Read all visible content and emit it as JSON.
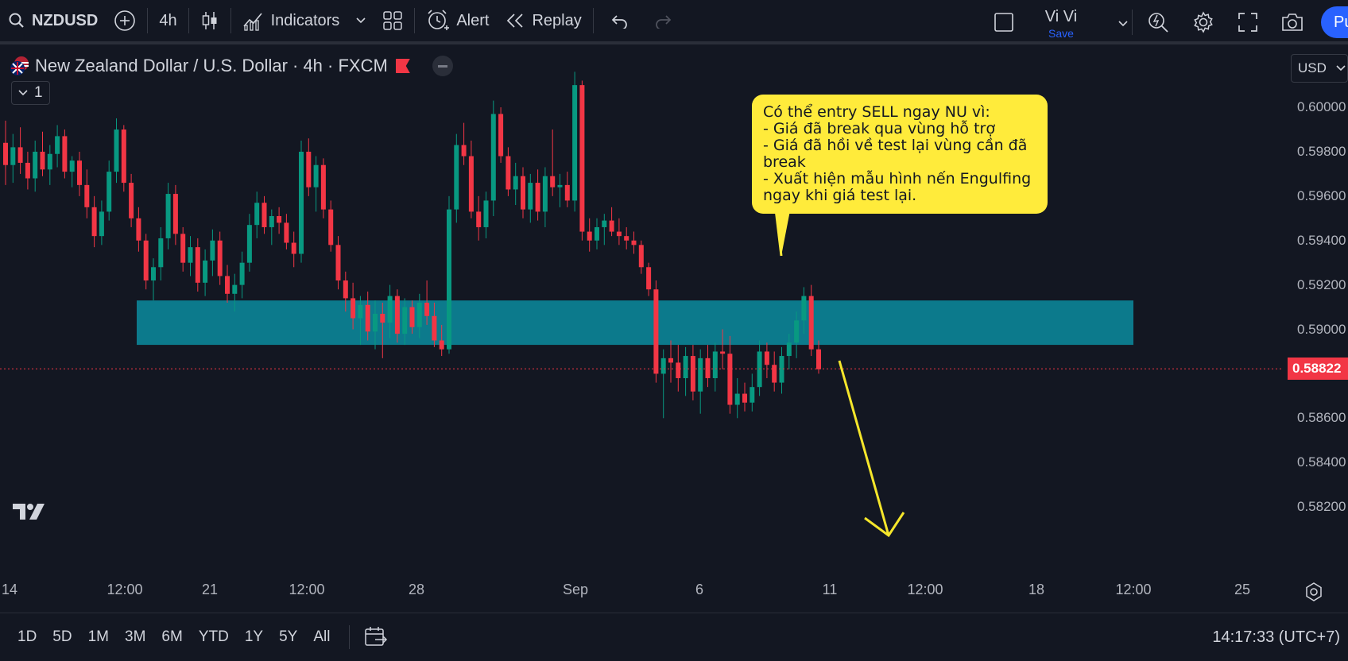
{
  "toolbar": {
    "symbol": "NZDUSD",
    "interval": "4h",
    "indicators_label": "Indicators",
    "alert_label": "Alert",
    "replay_label": "Replay",
    "user_name": "Vi Vi",
    "save_label": "Save",
    "publish_label": "Pu"
  },
  "legend": {
    "title": "New Zealand Dollar / U.S. Dollar · 4h · FXCM",
    "indicators_count": "1"
  },
  "annotation": {
    "text": "Có thể entry SELL ngay NU vì:\n- Giá đã break qua vùng hỗ trợ\n- Giá đã hồi về test lại vùng cần đã break\n- Xuất hiện mẫu hình nến Engulfing ngay khi giá test lại."
  },
  "price_axis": {
    "currency": "USD",
    "ticks": [
      "0.60000",
      "0.59800",
      "0.59600",
      "0.59400",
      "0.59200",
      "0.59000",
      "0.58600",
      "0.58400",
      "0.58200"
    ],
    "last_price": "0.58822"
  },
  "time_axis": {
    "ticks": [
      "14",
      "12:00",
      "21",
      "12:00",
      "28",
      "Sep",
      "6",
      "11",
      "12:00",
      "18",
      "12:00",
      "25"
    ]
  },
  "bottom": {
    "ranges": [
      "1D",
      "5D",
      "1M",
      "3M",
      "6M",
      "YTD",
      "1Y",
      "5Y",
      "All"
    ],
    "clock": "14:17:33 (UTC+7)"
  },
  "colors": {
    "background": "#131722",
    "up": "#089981",
    "down": "#f23645",
    "zone": "#0c7a8c",
    "callout": "#ffeb3b",
    "arrow": "#f5e62b",
    "accent": "#2962ff"
  },
  "chart_data": {
    "type": "candlestick",
    "ylim": [
      0.5805,
      0.6024
    ],
    "zone": {
      "low": 0.5893,
      "high": 0.5913
    },
    "last_price": 0.58822,
    "candles": [
      [
        0.5984,
        0.5994,
        0.5965,
        0.5974
      ],
      [
        0.5974,
        0.5988,
        0.5966,
        0.5982
      ],
      [
        0.5982,
        0.5991,
        0.597,
        0.5975
      ],
      [
        0.5975,
        0.598,
        0.5963,
        0.5968
      ],
      [
        0.5968,
        0.5985,
        0.5962,
        0.598
      ],
      [
        0.598,
        0.5989,
        0.5969,
        0.5972
      ],
      [
        0.5972,
        0.5983,
        0.5965,
        0.5979
      ],
      [
        0.5979,
        0.5992,
        0.5973,
        0.5987
      ],
      [
        0.5987,
        0.599,
        0.5968,
        0.5971
      ],
      [
        0.5971,
        0.5978,
        0.5964,
        0.5976
      ],
      [
        0.5976,
        0.598,
        0.596,
        0.5965
      ],
      [
        0.5965,
        0.5972,
        0.595,
        0.5955
      ],
      [
        0.5955,
        0.596,
        0.5937,
        0.5942
      ],
      [
        0.5942,
        0.5958,
        0.5938,
        0.5953
      ],
      [
        0.5953,
        0.5976,
        0.5949,
        0.5971
      ],
      [
        0.5971,
        0.5995,
        0.5966,
        0.599
      ],
      [
        0.599,
        0.5992,
        0.5962,
        0.5966
      ],
      [
        0.5966,
        0.597,
        0.5946,
        0.595
      ],
      [
        0.595,
        0.5955,
        0.5935,
        0.594
      ],
      [
        0.594,
        0.5943,
        0.5918,
        0.5922
      ],
      [
        0.5922,
        0.5932,
        0.5913,
        0.5928
      ],
      [
        0.5928,
        0.5946,
        0.5922,
        0.5941
      ],
      [
        0.5941,
        0.5966,
        0.5936,
        0.5961
      ],
      [
        0.5961,
        0.5965,
        0.5938,
        0.5943
      ],
      [
        0.5943,
        0.5946,
        0.5926,
        0.593
      ],
      [
        0.593,
        0.5942,
        0.5924,
        0.5937
      ],
      [
        0.5937,
        0.5941,
        0.5917,
        0.5921
      ],
      [
        0.5921,
        0.5936,
        0.5915,
        0.5931
      ],
      [
        0.5931,
        0.5945,
        0.5924,
        0.594
      ],
      [
        0.594,
        0.5944,
        0.592,
        0.5924
      ],
      [
        0.5924,
        0.5929,
        0.5912,
        0.5916
      ],
      [
        0.5916,
        0.5925,
        0.5908,
        0.592
      ],
      [
        0.592,
        0.5935,
        0.5914,
        0.593
      ],
      [
        0.593,
        0.5952,
        0.5926,
        0.5947
      ],
      [
        0.5947,
        0.5962,
        0.5941,
        0.5957
      ],
      [
        0.5957,
        0.596,
        0.5943,
        0.5946
      ],
      [
        0.5946,
        0.5954,
        0.5938,
        0.5951
      ],
      [
        0.5951,
        0.5955,
        0.5943,
        0.5948
      ],
      [
        0.5948,
        0.5952,
        0.5936,
        0.5939
      ],
      [
        0.5939,
        0.5944,
        0.5928,
        0.5934
      ],
      [
        0.5934,
        0.5985,
        0.593,
        0.598
      ],
      [
        0.598,
        0.5986,
        0.596,
        0.5964
      ],
      [
        0.5964,
        0.5978,
        0.5953,
        0.5974
      ],
      [
        0.5974,
        0.5977,
        0.595,
        0.5954
      ],
      [
        0.5954,
        0.5958,
        0.5935,
        0.5938
      ],
      [
        0.5938,
        0.5942,
        0.5918,
        0.5922
      ],
      [
        0.5922,
        0.5926,
        0.5908,
        0.5914
      ],
      [
        0.5914,
        0.5921,
        0.59,
        0.5905
      ],
      [
        0.5905,
        0.5915,
        0.5893,
        0.5911
      ],
      [
        0.5911,
        0.5917,
        0.5895,
        0.5899
      ],
      [
        0.5899,
        0.5913,
        0.5891,
        0.5907
      ],
      [
        0.5907,
        0.5912,
        0.5887,
        0.5903
      ],
      [
        0.5903,
        0.592,
        0.5896,
        0.5915
      ],
      [
        0.5915,
        0.5918,
        0.5894,
        0.5898
      ],
      [
        0.5898,
        0.5914,
        0.5893,
        0.591
      ],
      [
        0.591,
        0.5913,
        0.5898,
        0.5901
      ],
      [
        0.5901,
        0.5916,
        0.5896,
        0.5912
      ],
      [
        0.5912,
        0.5922,
        0.5902,
        0.5906
      ],
      [
        0.5906,
        0.5912,
        0.5892,
        0.5895
      ],
      [
        0.5895,
        0.5902,
        0.5888,
        0.5891
      ],
      [
        0.5891,
        0.596,
        0.5889,
        0.5954
      ],
      [
        0.5954,
        0.5988,
        0.5948,
        0.5983
      ],
      [
        0.5983,
        0.5993,
        0.5974,
        0.5978
      ],
      [
        0.5978,
        0.5985,
        0.595,
        0.5953
      ],
      [
        0.5953,
        0.596,
        0.594,
        0.5946
      ],
      [
        0.5946,
        0.5962,
        0.5941,
        0.5958
      ],
      [
        0.5958,
        0.6003,
        0.5951,
        0.5997
      ],
      [
        0.5997,
        0.6,
        0.5975,
        0.5978
      ],
      [
        0.5978,
        0.5982,
        0.596,
        0.5963
      ],
      [
        0.5963,
        0.5975,
        0.5956,
        0.5969
      ],
      [
        0.5969,
        0.5973,
        0.595,
        0.5954
      ],
      [
        0.5954,
        0.597,
        0.5948,
        0.5966
      ],
      [
        0.5966,
        0.5972,
        0.5949,
        0.5953
      ],
      [
        0.5953,
        0.5973,
        0.5946,
        0.5969
      ],
      [
        0.5969,
        0.599,
        0.596,
        0.5964
      ],
      [
        0.5964,
        0.597,
        0.5955,
        0.5965
      ],
      [
        0.5965,
        0.5971,
        0.5955,
        0.5958
      ],
      [
        0.5958,
        0.6016,
        0.5953,
        0.601
      ],
      [
        0.601,
        0.6012,
        0.594,
        0.5944
      ],
      [
        0.5944,
        0.595,
        0.5935,
        0.594
      ],
      [
        0.594,
        0.595,
        0.5936,
        0.5946
      ],
      [
        0.5946,
        0.5952,
        0.5938,
        0.5949
      ],
      [
        0.5949,
        0.5955,
        0.5942,
        0.5944
      ],
      [
        0.5944,
        0.595,
        0.5938,
        0.5942
      ],
      [
        0.5942,
        0.5946,
        0.5936,
        0.594
      ],
      [
        0.594,
        0.5944,
        0.5934,
        0.5938
      ],
      [
        0.5938,
        0.594,
        0.5925,
        0.5928
      ],
      [
        0.5928,
        0.593,
        0.5915,
        0.5918
      ],
      [
        0.5918,
        0.5922,
        0.5876,
        0.588
      ],
      [
        0.588,
        0.5891,
        0.586,
        0.5887
      ],
      [
        0.5887,
        0.5895,
        0.5876,
        0.5885
      ],
      [
        0.5885,
        0.5893,
        0.5872,
        0.5878
      ],
      [
        0.5878,
        0.5892,
        0.587,
        0.5888
      ],
      [
        0.5888,
        0.5893,
        0.5868,
        0.5872
      ],
      [
        0.5872,
        0.5891,
        0.5862,
        0.5887
      ],
      [
        0.5887,
        0.5893,
        0.5874,
        0.5878
      ],
      [
        0.5878,
        0.5894,
        0.5872,
        0.589
      ],
      [
        0.589,
        0.59,
        0.5882,
        0.5889
      ],
      [
        0.5889,
        0.5897,
        0.5862,
        0.5866
      ],
      [
        0.5866,
        0.5878,
        0.586,
        0.5871
      ],
      [
        0.5871,
        0.5876,
        0.5863,
        0.5867
      ],
      [
        0.5867,
        0.588,
        0.5863,
        0.5874
      ],
      [
        0.5874,
        0.5895,
        0.587,
        0.589
      ],
      [
        0.589,
        0.5894,
        0.5878,
        0.5884
      ],
      [
        0.5884,
        0.589,
        0.5872,
        0.5876
      ],
      [
        0.5876,
        0.5892,
        0.5871,
        0.5888
      ],
      [
        0.5888,
        0.5898,
        0.5882,
        0.5894
      ],
      [
        0.5894,
        0.5908,
        0.5887,
        0.5904
      ],
      [
        0.5904,
        0.5919,
        0.5898,
        0.5915
      ],
      [
        0.5915,
        0.592,
        0.5888,
        0.5891
      ],
      [
        0.5891,
        0.5895,
        0.588,
        0.5882
      ]
    ]
  }
}
